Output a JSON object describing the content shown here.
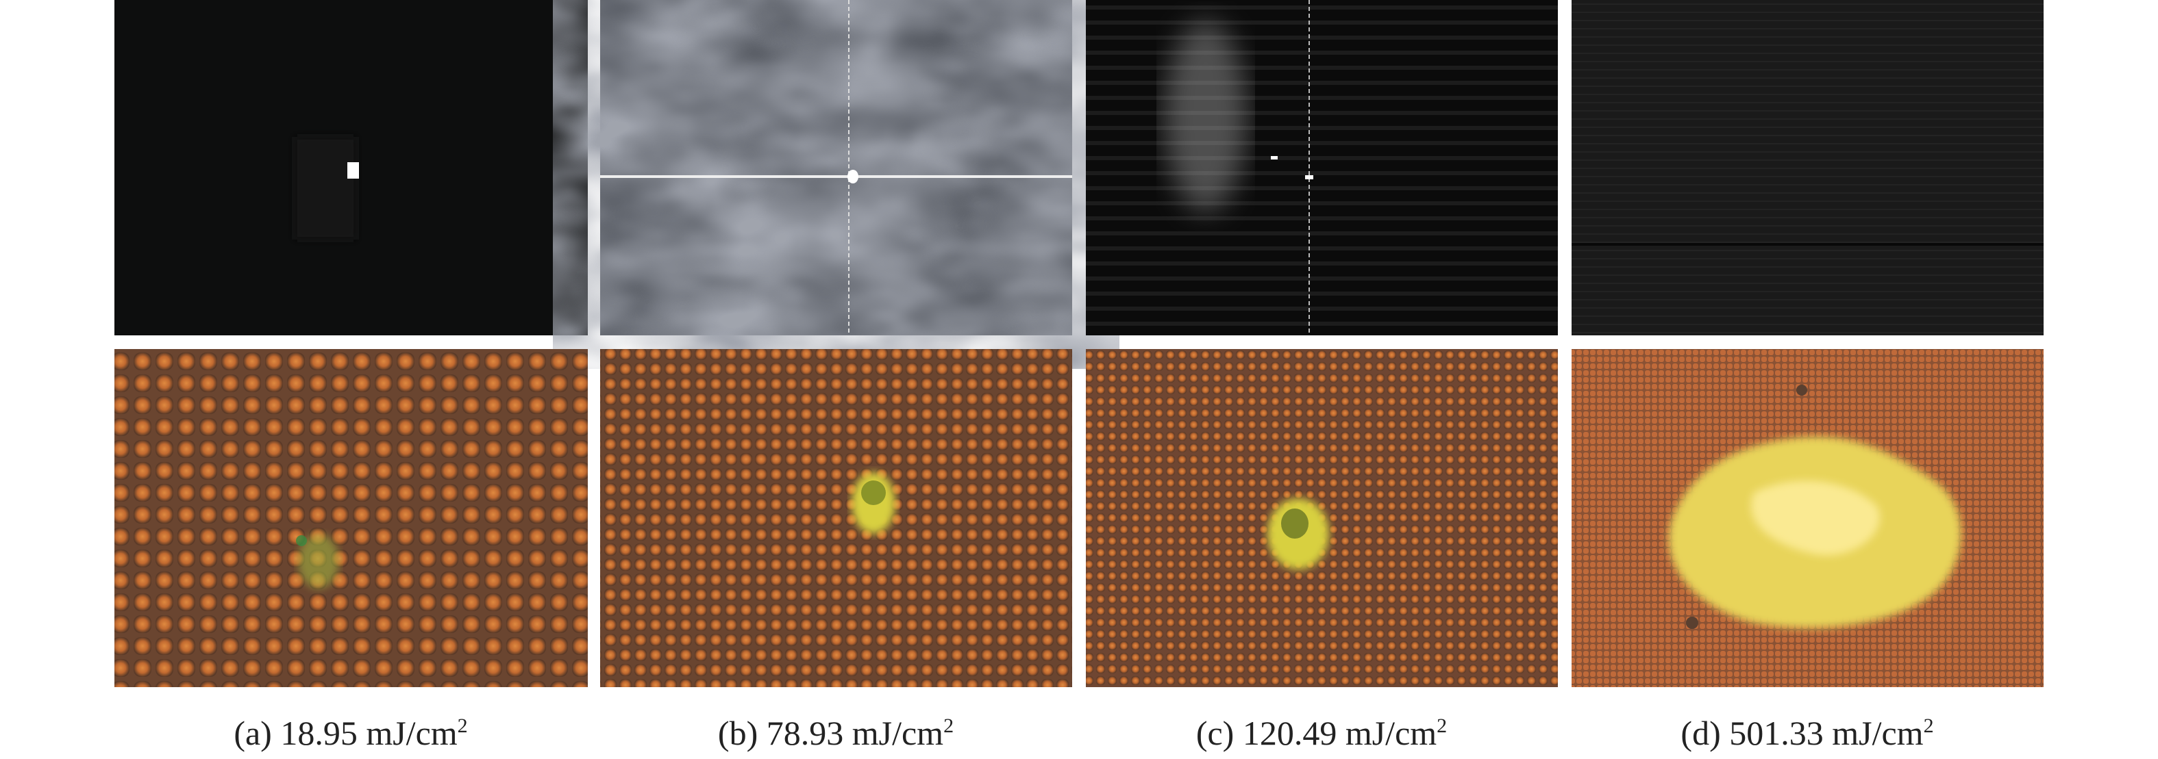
{
  "figure": {
    "panels": [
      {
        "caption": "(a) 18.95 mJ/cm",
        "superscript": "2"
      },
      {
        "caption": "(b) 78.93 mJ/cm",
        "superscript": "2"
      },
      {
        "caption": "(c) 120.49 mJ/cm",
        "superscript": "2"
      },
      {
        "caption": "(d) 501.33 mJ/cm",
        "superscript": "2"
      }
    ]
  }
}
